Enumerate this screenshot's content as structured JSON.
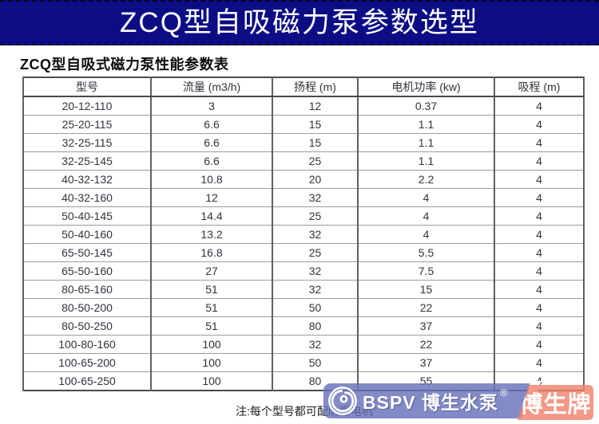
{
  "banner": {
    "title": "ZCQ型自吸磁力泵参数选型",
    "bg_color": "#0c0c85",
    "text_color": "#ffffff"
  },
  "table": {
    "caption": "ZCQ型自吸式磁力泵性能参数表",
    "columns": [
      "型号",
      "流量 (m3/h)",
      "扬程 (m)",
      "电机功率 (kw)",
      "吸程 (m)"
    ],
    "rows": [
      [
        "20-12-110",
        "3",
        "12",
        "0.37",
        "4"
      ],
      [
        "25-20-115",
        "6.6",
        "15",
        "1.1",
        "4"
      ],
      [
        "32-25-115",
        "6.6",
        "15",
        "1.1",
        "4"
      ],
      [
        "32-25-145",
        "6.6",
        "25",
        "1.1",
        "4"
      ],
      [
        "40-32-132",
        "10.8",
        "20",
        "2.2",
        "4"
      ],
      [
        "40-32-160",
        "12",
        "32",
        "4",
        "4"
      ],
      [
        "50-40-145",
        "14.4",
        "25",
        "4",
        "4"
      ],
      [
        "50-40-160",
        "13.2",
        "32",
        "4",
        "4"
      ],
      [
        "65-50-145",
        "16.8",
        "25",
        "5.5",
        "4"
      ],
      [
        "65-50-160",
        "27",
        "32",
        "7.5",
        "4"
      ],
      [
        "80-65-160",
        "51",
        "32",
        "15",
        "4"
      ],
      [
        "80-50-200",
        "51",
        "50",
        "22",
        "4"
      ],
      [
        "80-50-250",
        "51",
        "80",
        "37",
        "4"
      ],
      [
        "100-80-160",
        "100",
        "32",
        "22",
        "4"
      ],
      [
        "100-65-200",
        "100",
        "50",
        "37",
        "4"
      ],
      [
        "100-65-250",
        "100",
        "80",
        "55",
        "4"
      ]
    ]
  },
  "note": "注:每个型号都可配防爆电机",
  "watermark": {
    "brand_latin": "BSPV",
    "brand_cn": "博生水泵",
    "registered_mark": "®",
    "badge_label": "博生牌",
    "blue_color": "#6871bb",
    "salmon_color": "#f0826c"
  }
}
